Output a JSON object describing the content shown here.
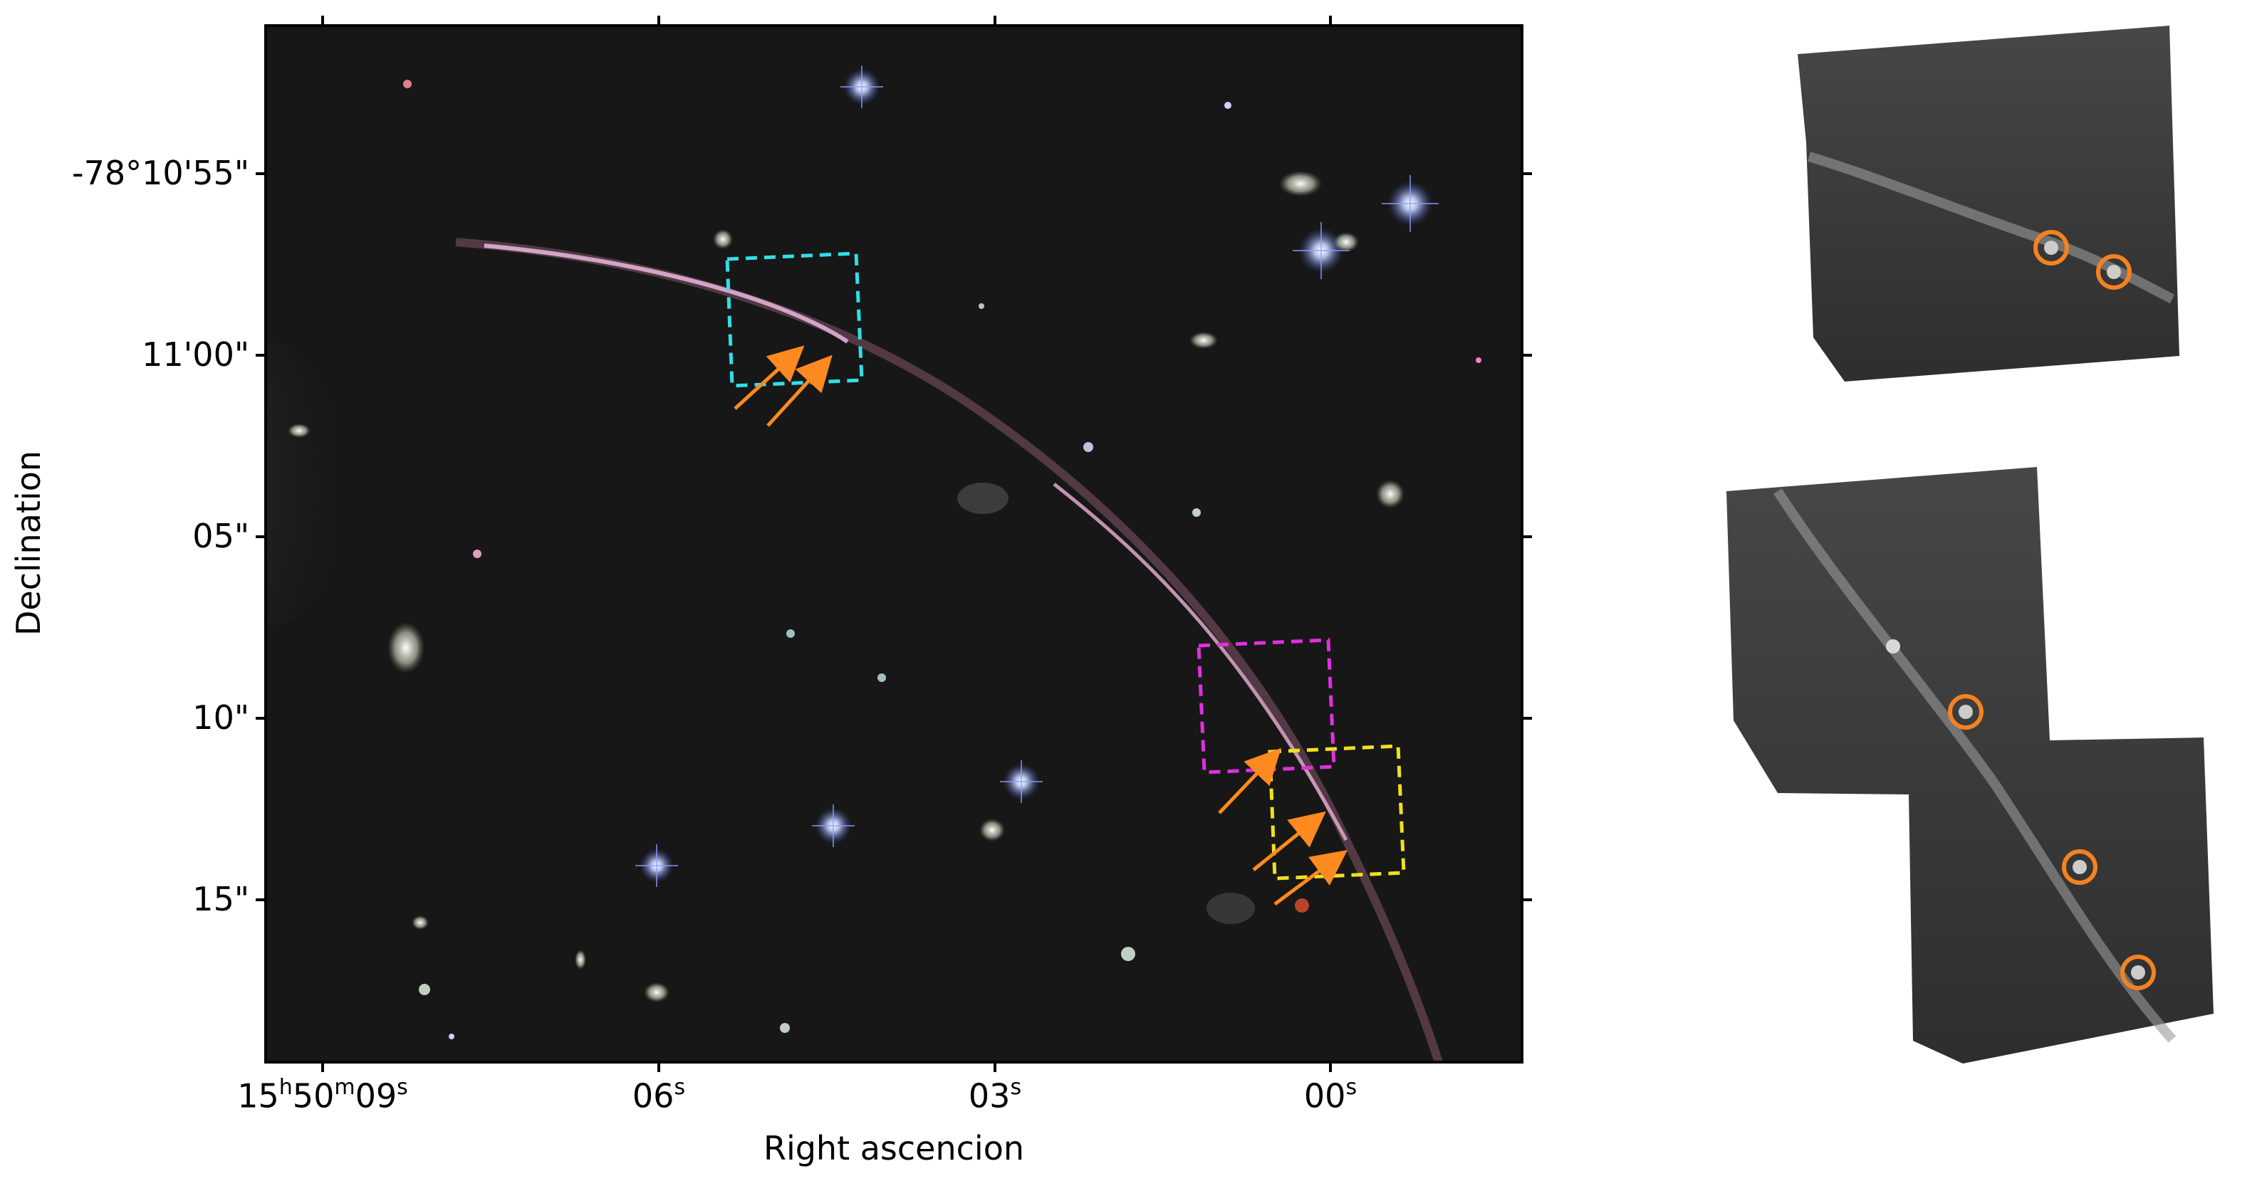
{
  "axes": {
    "x_title": "Right ascencion",
    "y_title": "Declination",
    "x_ticks": [
      {
        "h": "15",
        "m": "50",
        "s": "09",
        "sup_h": "h",
        "sup_m": "m",
        "sup_s": "s"
      },
      {
        "s": "06",
        "sup_s": "s"
      },
      {
        "s": "03",
        "sup_s": "s"
      },
      {
        "s": "00",
        "sup_s": "s"
      }
    ],
    "y_ticks": [
      "-78°10'55\"",
      "11'00\"",
      "05\"",
      "10\"",
      "15\""
    ]
  },
  "colors": {
    "sky": "#161616",
    "arc": "#d8a0c8",
    "box_cyan": "#2fe0e8",
    "box_magenta": "#e030e0",
    "box_yellow": "#f0e020",
    "arrow": "#ff8a1f",
    "circle": "#f5821f",
    "inset_bg": "#3a3a3a"
  },
  "insets": [
    {
      "name": "top-inset",
      "markers": 2
    },
    {
      "name": "bottom-inset",
      "markers": 3
    }
  ]
}
